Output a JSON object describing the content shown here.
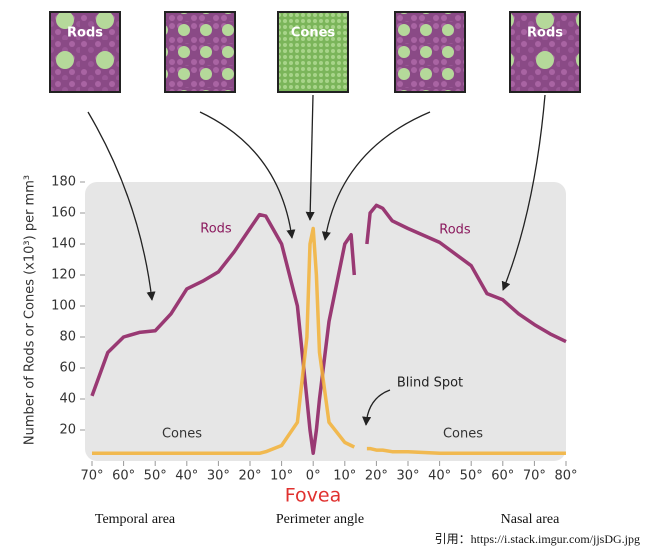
{
  "chart_data": {
    "type": "line",
    "panel_labels": [
      "Rods",
      "Cones",
      "Rods"
    ],
    "ylabel": "Number of Rods or Cones (x10³) per mm³",
    "xlabel": "Perimeter angle",
    "fovea_label": "Fovea",
    "region_labels": [
      "Temporal area",
      "Nasal area"
    ],
    "annotations": [
      "Rods",
      "Rods",
      "Cones",
      "Cones",
      "Blind Spot"
    ],
    "source": "引用：https://i.stack.imgur.com/jjsDG.jpg",
    "x": [
      -70,
      -65,
      -60,
      -55,
      -50,
      -45,
      -40,
      -35,
      -30,
      -25,
      -20,
      -17,
      -15,
      -10,
      -5,
      -2,
      -1,
      0,
      1,
      2,
      5,
      10,
      12,
      13,
      14,
      16,
      17,
      18,
      20,
      22,
      25,
      30,
      40,
      50,
      55,
      60,
      65,
      70,
      75,
      80
    ],
    "series": [
      {
        "name": "Rods",
        "color": "#8b1a5e",
        "values": [
          42,
          70,
          80,
          83,
          84,
          95,
          111,
          116,
          122,
          135,
          150,
          159,
          158,
          140,
          100,
          40,
          20,
          5,
          20,
          40,
          90,
          140,
          146,
          120,
          null,
          null,
          140,
          160,
          165,
          163,
          155,
          150,
          141,
          126,
          108,
          104,
          95,
          88,
          82,
          77
        ]
      },
      {
        "name": "Cones",
        "color": "#f2b035",
        "values": [
          5,
          5,
          5,
          5,
          5,
          5,
          5,
          5,
          5,
          5,
          5,
          5,
          6,
          10,
          25,
          80,
          140,
          150,
          120,
          70,
          25,
          12,
          10,
          9,
          null,
          null,
          8,
          8,
          7,
          7,
          6,
          6,
          5,
          5,
          5,
          5,
          5,
          5,
          5,
          5
        ]
      }
    ],
    "xlim": [
      -70,
      80
    ],
    "xticks": [
      {
        "value": -70,
        "label": "70°"
      },
      {
        "value": -60,
        "label": "60°"
      },
      {
        "value": -50,
        "label": "50°"
      },
      {
        "value": -40,
        "label": "40°"
      },
      {
        "value": -30,
        "label": "30°"
      },
      {
        "value": -20,
        "label": "20°"
      },
      {
        "value": -10,
        "label": "10°"
      },
      {
        "value": 0,
        "label": "0°"
      },
      {
        "value": 10,
        "label": "10°"
      },
      {
        "value": 20,
        "label": "20°"
      },
      {
        "value": 30,
        "label": "30°"
      },
      {
        "value": 40,
        "label": "40°"
      },
      {
        "value": 50,
        "label": "50°"
      },
      {
        "value": 60,
        "label": "60°"
      },
      {
        "value": 70,
        "label": "70°"
      },
      {
        "value": 80,
        "label": "80°"
      }
    ],
    "ylim": [
      0,
      180
    ],
    "yticks": [
      20,
      40,
      60,
      80,
      100,
      120,
      140,
      160,
      180
    ]
  }
}
